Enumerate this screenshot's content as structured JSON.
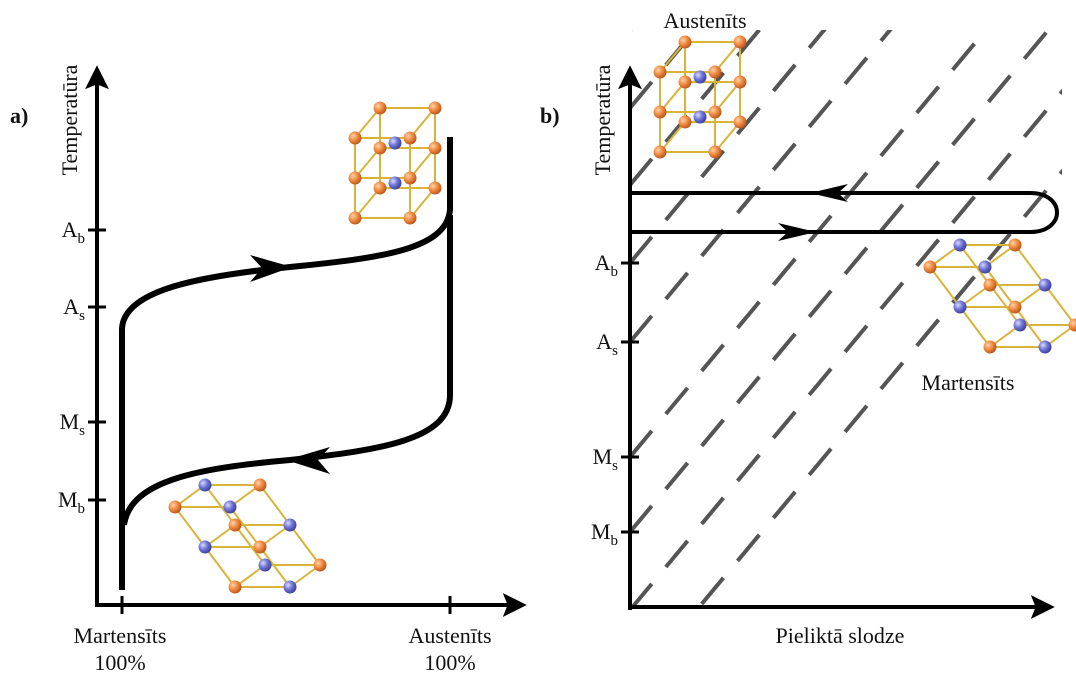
{
  "panel_a": {
    "label": "a)",
    "y_axis": "Temperatūra",
    "ticks": [
      {
        "main": "A",
        "sub": "b"
      },
      {
        "main": "A",
        "sub": "s"
      },
      {
        "main": "M",
        "sub": "s"
      },
      {
        "main": "M",
        "sub": "b"
      }
    ],
    "x_labels": [
      {
        "name": "Martensīts",
        "percent": "100%"
      },
      {
        "name": "Austenīts",
        "percent": "100%"
      }
    ]
  },
  "panel_b": {
    "label": "b)",
    "y_axis": "Temperatūra",
    "x_axis": "Pieliktā slodze",
    "ticks": [
      {
        "main": "A",
        "sub": "b"
      },
      {
        "main": "A",
        "sub": "s"
      },
      {
        "main": "M",
        "sub": "s"
      },
      {
        "main": "M",
        "sub": "b"
      }
    ],
    "austenite_label": "Austenīts",
    "martensite_label": "Martensīts"
  }
}
